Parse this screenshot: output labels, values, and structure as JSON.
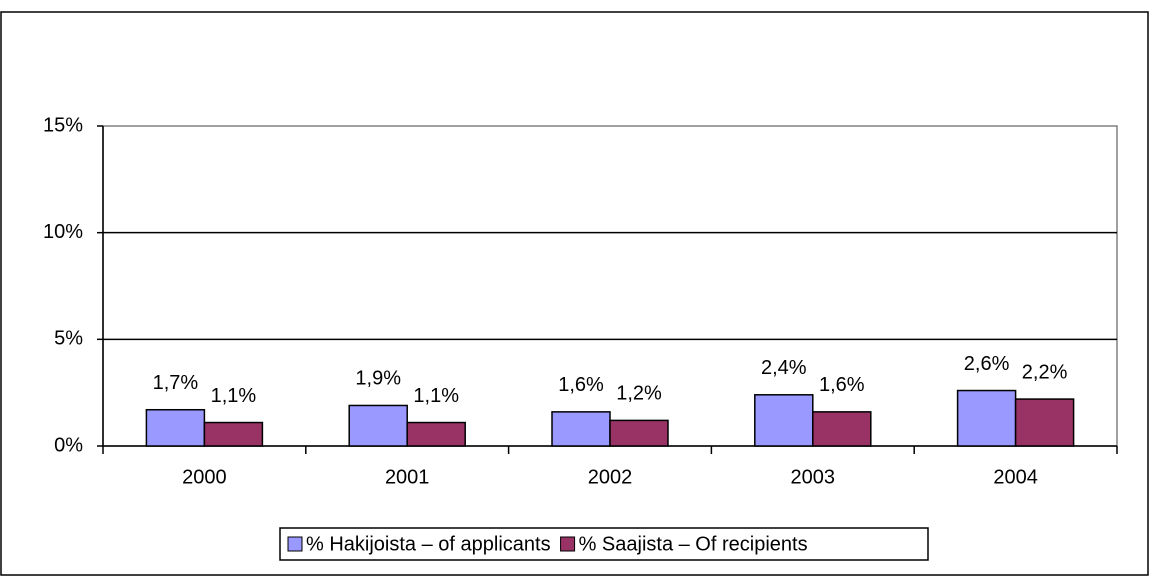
{
  "chart_data": {
    "type": "bar",
    "categories": [
      "2000",
      "2001",
      "2002",
      "2003",
      "2004"
    ],
    "series": [
      {
        "name": "% Hakijoista – of applicants",
        "color": "#9999ff",
        "values": [
          1.7,
          1.9,
          1.6,
          2.4,
          2.6
        ],
        "value_labels": [
          "1,7%",
          "1,9%",
          "1,6%",
          "2,4%",
          "2,6%"
        ]
      },
      {
        "name": "% Saajista – Of recipients",
        "color": "#993366",
        "values": [
          1.1,
          1.1,
          1.2,
          1.6,
          2.2
        ],
        "value_labels": [
          "1,1%",
          "1,1%",
          "1,2%",
          "1,6%",
          "2,2%"
        ]
      }
    ],
    "ylim": [
      0,
      15
    ],
    "yticks": [
      {
        "value": 0,
        "label": "0%"
      },
      {
        "value": 5,
        "label": "5%"
      },
      {
        "value": 10,
        "label": "10%"
      },
      {
        "value": 15,
        "label": "15%"
      }
    ],
    "grid": true,
    "legend": "bottom"
  }
}
